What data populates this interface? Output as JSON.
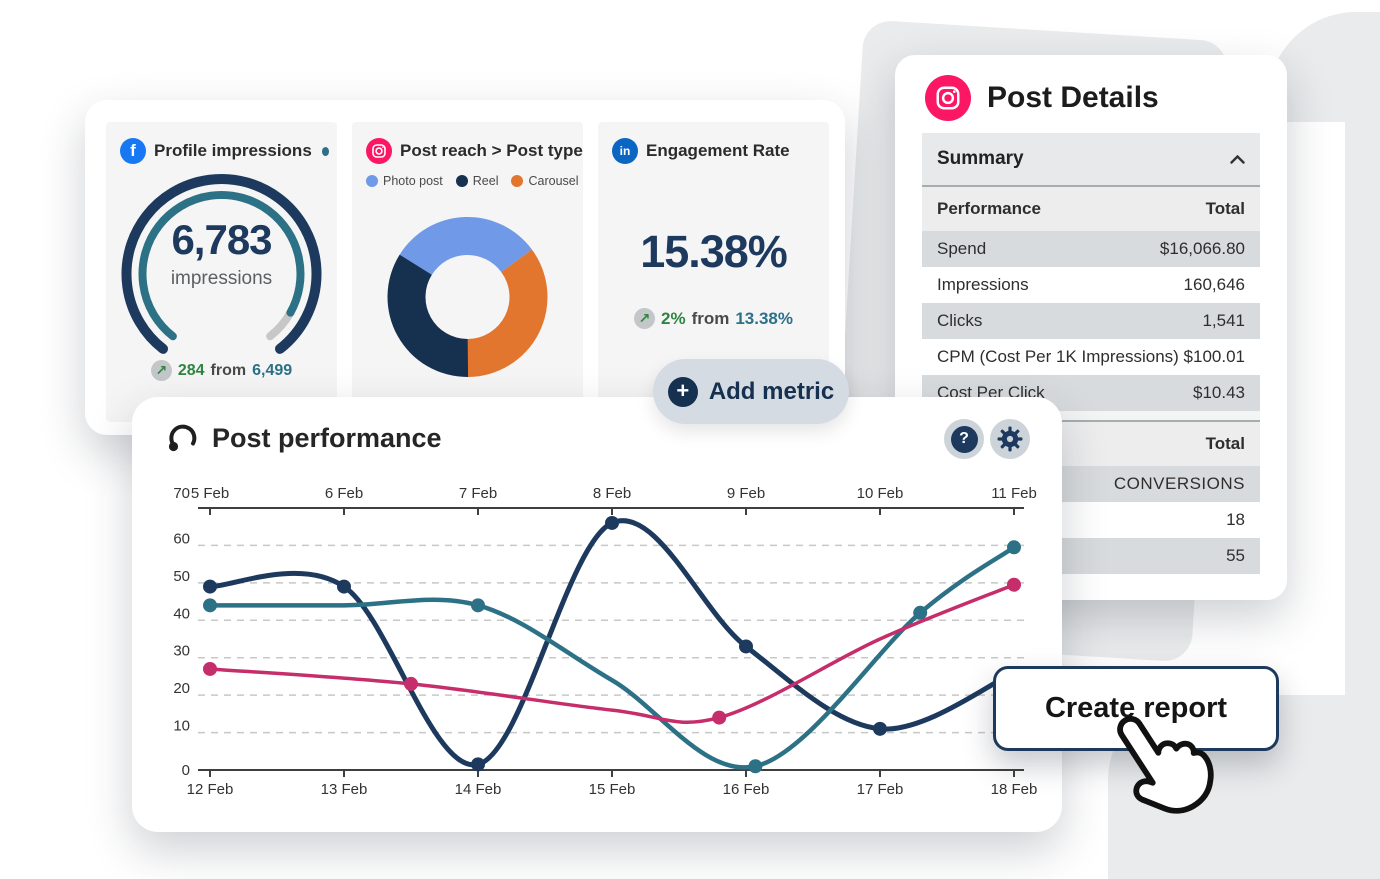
{
  "colors": {
    "navy": "#1d3a5e",
    "teal": "#2d7186",
    "pink_line": "#c52d6b",
    "green": "#2e8540",
    "facebook_blue": "#1877f2",
    "linkedin_blue": "#0a66c2",
    "instagram_pink": "#fb1764",
    "photo_blue": "#7099e8",
    "reel_navy": "#16304f",
    "carousel_orange": "#e2762e",
    "row_gray": "#d8dbdd"
  },
  "tiles": {
    "profile": {
      "title": "Profile impressions",
      "value": "6,783",
      "unit": "impressions",
      "trend_value": "284",
      "trend_from_label": "from",
      "trend_baseline": "6,499",
      "gauge": {
        "fraction": 0.92,
        "outer_color": "#1d3a5e",
        "fill_color": "#2d7186",
        "rest_color": "#c7c7c7"
      }
    },
    "reach": {
      "title": "Post reach > Post type",
      "legend": [
        {
          "label": "Photo post",
          "color": "#7099e8"
        },
        {
          "label": "Reel",
          "color": "#16304f"
        },
        {
          "label": "Carousel",
          "color": "#e2762e"
        }
      ],
      "donut": {
        "start_angle": -58,
        "segments": [
          {
            "label": "Photo post",
            "pct": 31,
            "color": "#7099e8"
          },
          {
            "label": "Carousel",
            "pct": 35,
            "color": "#e2762e"
          },
          {
            "label": "Reel",
            "pct": 34,
            "color": "#16304f"
          }
        ]
      }
    },
    "engagement": {
      "title": "Engagement Rate",
      "value": "15.38%",
      "trend_value": "2%",
      "trend_from_label": "from",
      "trend_baseline": "13.38%"
    }
  },
  "post_details": {
    "title": "Post Details",
    "summary_label": "Summary",
    "table1": {
      "header": [
        "Performance",
        "Total"
      ],
      "rows": [
        [
          "Spend",
          "$16,066.80"
        ],
        [
          "Impressions",
          "160,646"
        ],
        [
          "Clicks",
          "1,541"
        ],
        [
          "CPM (Cost Per 1K Impressions)",
          "$100.01"
        ],
        [
          "Cost Per Click",
          "$10.43"
        ]
      ]
    },
    "table2": {
      "header_total": "Total",
      "rows": [
        "CONVERSIONS",
        "18",
        "55"
      ]
    }
  },
  "post_performance": {
    "title": "Post performance",
    "help_glyph": "?"
  },
  "buttons": {
    "add_metric": "Add metric",
    "create_report": "Create report"
  },
  "chart_data": {
    "type": "line",
    "title": "Post performance",
    "x_top_labels": [
      "5 Feb",
      "6 Feb",
      "7 Feb",
      "8 Feb",
      "9 Feb",
      "10 Feb",
      "11 Feb"
    ],
    "x_bottom_labels": [
      "12 Feb",
      "13 Feb",
      "14 Feb",
      "15 Feb",
      "16 Feb",
      "17 Feb",
      "18 Feb"
    ],
    "ylim": [
      0,
      70
    ],
    "ytick_step": 10,
    "grid": "horizontal-dashed",
    "legend_position": "none",
    "series": [
      {
        "name": "dark-navy",
        "color": "#1d3a5e",
        "width": 5,
        "x": [
          0,
          1,
          2,
          3,
          4,
          5,
          6
        ],
        "y": [
          49,
          49,
          1.5,
          66,
          33,
          11,
          26
        ],
        "dots": [
          [
            0,
            49
          ],
          [
            1,
            49
          ],
          [
            2,
            1.5
          ],
          [
            3,
            66
          ],
          [
            4,
            33
          ],
          [
            5,
            11
          ]
        ]
      },
      {
        "name": "teal",
        "color": "#2d7186",
        "width": 4.5,
        "x": [
          0,
          1,
          2,
          3,
          4.07,
          5.3,
          6
        ],
        "y": [
          44,
          44,
          44,
          24,
          1,
          42,
          59.5
        ],
        "dots": [
          [
            0,
            44
          ],
          [
            2,
            44
          ],
          [
            4.07,
            1
          ],
          [
            5.3,
            42
          ],
          [
            6,
            59.5
          ]
        ]
      },
      {
        "name": "pink",
        "color": "#c52d6b",
        "width": 3.5,
        "x": [
          0,
          1.5,
          3,
          3.8,
          5,
          6
        ],
        "y": [
          27,
          23,
          16,
          14,
          35,
          49.5
        ],
        "dots": [
          [
            0,
            27
          ],
          [
            1.5,
            23
          ],
          [
            3.8,
            14
          ],
          [
            6,
            49.5
          ]
        ]
      }
    ]
  }
}
